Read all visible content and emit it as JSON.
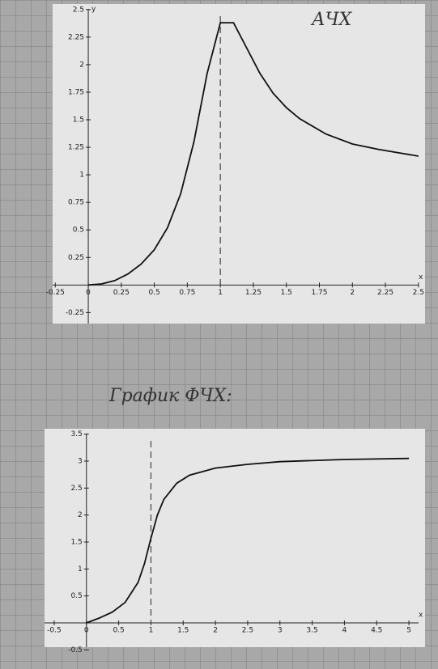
{
  "chart_data": [
    {
      "type": "line",
      "title": "АЧХ",
      "x_label": "x",
      "y_label": "y",
      "x": [
        0,
        0.1,
        0.2,
        0.3,
        0.4,
        0.5,
        0.6,
        0.7,
        0.8,
        0.9,
        1.0,
        1.1,
        1.2,
        1.3,
        1.4,
        1.5,
        1.6,
        1.8,
        2.0,
        2.2,
        2.5
      ],
      "series": [
        {
          "color": "#111111",
          "values": [
            0,
            0.01,
            0.04,
            0.1,
            0.19,
            0.32,
            0.52,
            0.83,
            1.3,
            1.92,
            2.38,
            2.38,
            2.15,
            1.92,
            1.74,
            1.61,
            1.51,
            1.37,
            1.28,
            1.23,
            1.17
          ]
        }
      ],
      "xlim": [
        -0.27,
        2.55
      ],
      "ylim": [
        -0.35,
        2.55
      ],
      "xticks": [
        -0.25,
        0,
        0.25,
        0.5,
        0.75,
        1,
        1.25,
        1.5,
        1.75,
        2,
        2.25,
        2.5
      ],
      "yticks": [
        -0.25,
        0.25,
        0.5,
        0.75,
        1,
        1.25,
        1.5,
        1.75,
        2,
        2.25,
        2.5
      ],
      "reference_x": 1
    },
    {
      "type": "line",
      "title": "График ФЧХ:",
      "x_label": "x",
      "x": [
        0,
        0.2,
        0.4,
        0.6,
        0.8,
        0.9,
        1,
        1.1,
        1.2,
        1.4,
        1.6,
        2,
        2.5,
        3,
        4,
        5
      ],
      "series": [
        {
          "color": "#111111",
          "values": [
            0,
            0.09,
            0.2,
            0.38,
            0.75,
            1.1,
            1.57,
            2.0,
            2.29,
            2.59,
            2.74,
            2.87,
            2.94,
            2.99,
            3.03,
            3.05
          ]
        }
      ],
      "xlim": [
        -0.65,
        5.25
      ],
      "ylim": [
        -0.45,
        3.6
      ],
      "xticks": [
        -0.5,
        0,
        0.5,
        1,
        1.5,
        2,
        2.5,
        3,
        3.5,
        4,
        4.5,
        5
      ],
      "yticks": [
        -0.5,
        0.5,
        1,
        1.5,
        2,
        2.5,
        3,
        3.5
      ],
      "reference_x": 1
    }
  ]
}
